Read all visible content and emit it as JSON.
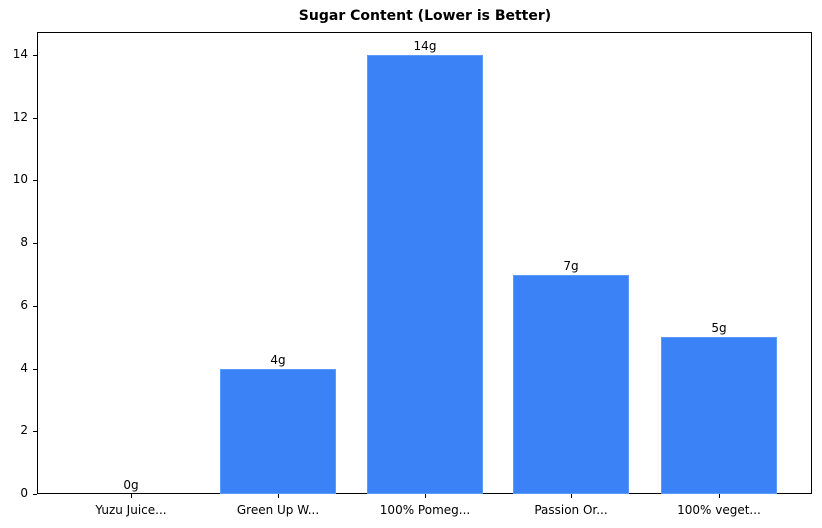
{
  "chart_data": {
    "type": "bar",
    "title": "Sugar Content (Lower is Better)",
    "xlabel": "",
    "ylabel": "",
    "categories": [
      "Yuzu Juice...",
      "Green Up W...",
      "100% Pomeg...",
      "Passion Or...",
      "100% veget..."
    ],
    "values": [
      0,
      4,
      14,
      7,
      5
    ],
    "data_labels": [
      "0g",
      "4g",
      "14g",
      "7g",
      "5g"
    ],
    "ylim": [
      0,
      14.7
    ],
    "yticks": [
      0,
      2,
      4,
      6,
      8,
      10,
      12,
      14
    ],
    "grid": false,
    "legend": null,
    "bar_color": "#3b82f6"
  }
}
